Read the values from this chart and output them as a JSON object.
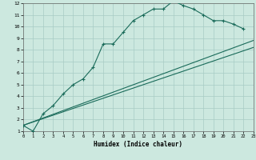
{
  "title": "",
  "xlabel": "Humidex (Indice chaleur)",
  "bg_color": "#cce8df",
  "grid_color": "#a8ccC4",
  "line_color": "#1a6b5a",
  "xlim": [
    0,
    23
  ],
  "ylim": [
    1,
    12
  ],
  "xticks": [
    0,
    1,
    2,
    3,
    4,
    5,
    6,
    7,
    8,
    9,
    10,
    11,
    12,
    13,
    14,
    15,
    16,
    17,
    18,
    19,
    20,
    21,
    22,
    23
  ],
  "yticks": [
    1,
    2,
    3,
    4,
    5,
    6,
    7,
    8,
    9,
    10,
    11,
    12
  ],
  "series": [
    {
      "x": [
        0,
        1,
        2,
        3,
        4,
        5,
        6,
        7,
        8,
        9,
        10,
        11,
        12,
        13,
        14,
        15,
        16,
        17,
        18,
        19,
        20,
        21,
        22
      ],
      "y": [
        1.5,
        1.0,
        2.5,
        3.2,
        4.2,
        5.0,
        5.5,
        6.5,
        8.5,
        8.5,
        9.5,
        10.5,
        11.0,
        11.5,
        11.5,
        12.2,
        11.8,
        11.5,
        11.0,
        10.5,
        10.5,
        10.2,
        9.8
      ],
      "has_markers": true
    },
    {
      "x": [
        0,
        23
      ],
      "y": [
        1.5,
        8.8
      ],
      "has_markers": false
    },
    {
      "x": [
        0,
        23
      ],
      "y": [
        1.5,
        8.2
      ],
      "has_markers": false
    }
  ]
}
